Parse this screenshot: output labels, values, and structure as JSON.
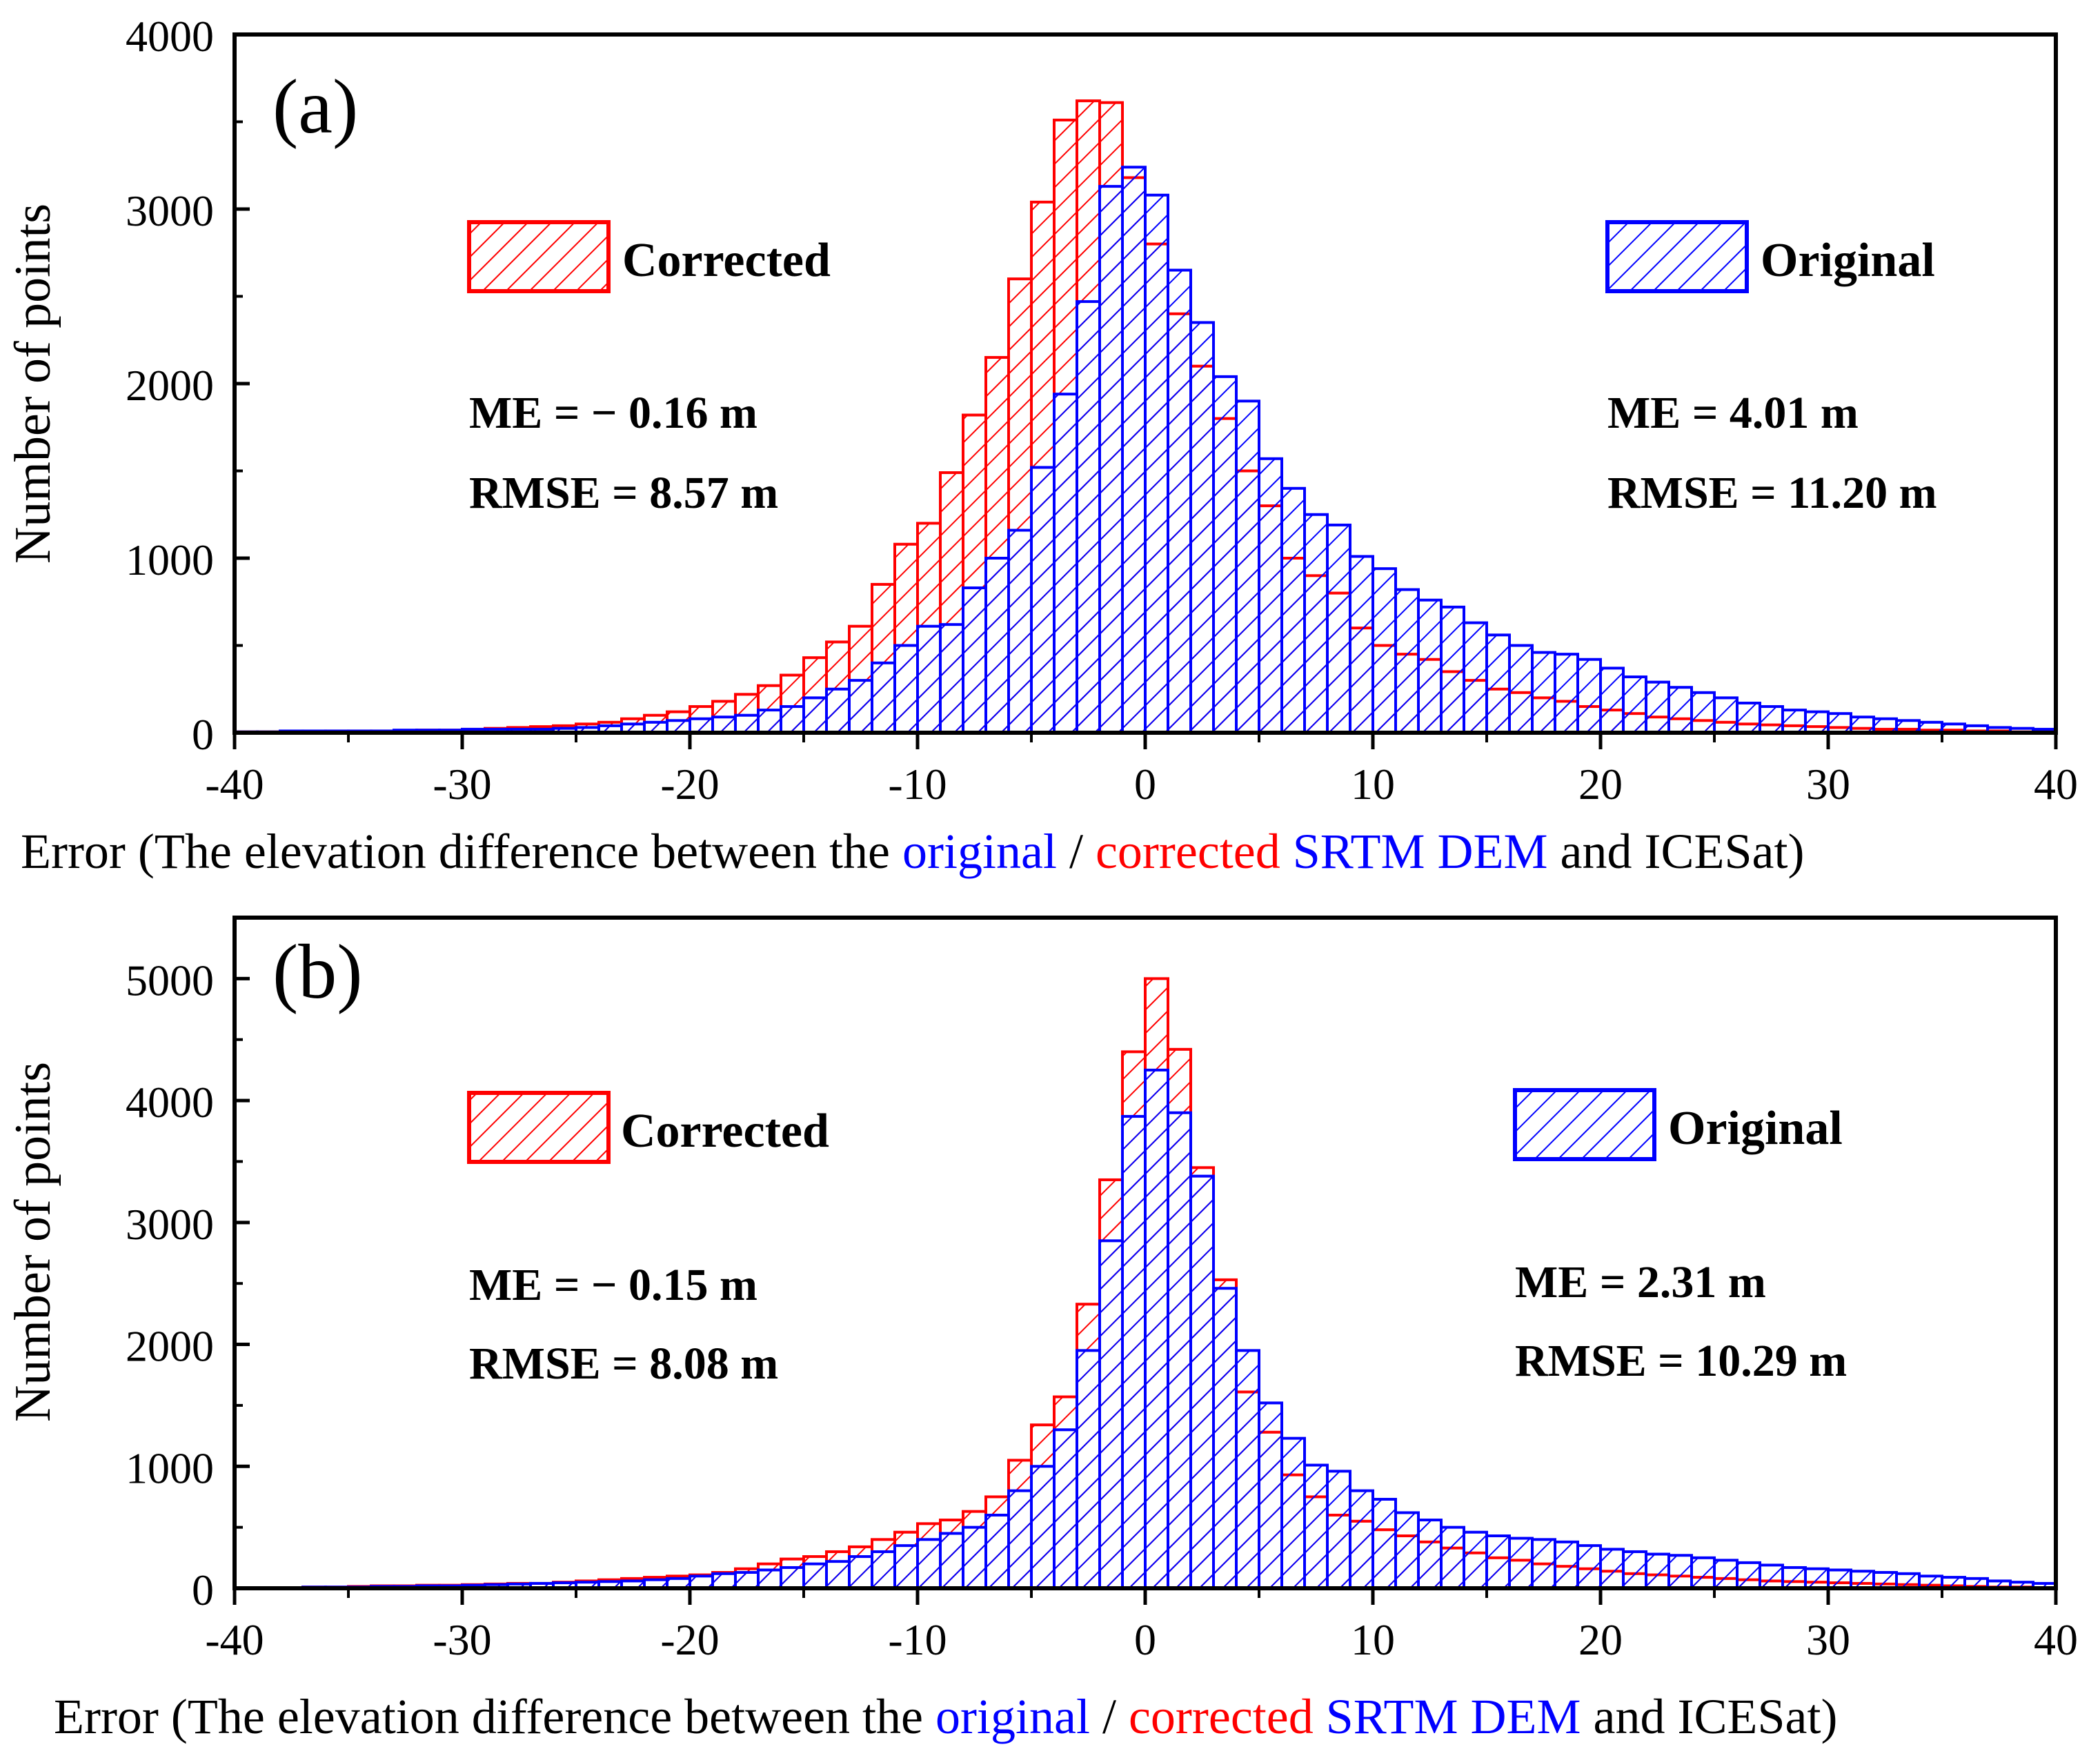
{
  "colors": {
    "corrected": "#ff0000",
    "original": "#0000ff",
    "axis": "#000000"
  },
  "xlabel_parts": [
    {
      "text": "Error (The elevation difference between the ",
      "color": "#000000"
    },
    {
      "text": "original",
      "color": "#0000ff"
    },
    {
      "text": " / ",
      "color": "#000000"
    },
    {
      "text": "corrected",
      "color": "#ff0000"
    },
    {
      "text": " SRTM DEM",
      "color": "#0000ff"
    },
    {
      "text": " and  ICESat)",
      "color": "#000000"
    }
  ],
  "chart_data": [
    {
      "type": "histogram",
      "panel_label": "(a)",
      "ylabel": "Number of points",
      "xlim": [
        -40,
        40
      ],
      "ylim": [
        0,
        4000
      ],
      "xticks": [
        -40,
        -30,
        -20,
        -10,
        0,
        10,
        20,
        30,
        40
      ],
      "yticks": [
        0,
        1000,
        2000,
        3000,
        4000
      ],
      "bin_start": -40,
      "bin_width": 1,
      "series": [
        {
          "name": "Corrected",
          "stats": [
            "ME = − 0.16 m",
            "RMSE = 8.57 m"
          ],
          "values": [
            5,
            5,
            5,
            5,
            10,
            10,
            10,
            10,
            15,
            15,
            20,
            25,
            30,
            35,
            40,
            50,
            60,
            80,
            100,
            120,
            150,
            180,
            220,
            270,
            330,
            430,
            520,
            610,
            850,
            1080,
            1200,
            1490,
            1820,
            2150,
            2600,
            3040,
            3510,
            3620,
            3610,
            3180,
            2800,
            2400,
            2100,
            1800,
            1500,
            1300,
            1000,
            900,
            800,
            600,
            500,
            450,
            420,
            350,
            300,
            250,
            230,
            200,
            180,
            150,
            130,
            110,
            90,
            80,
            70,
            60,
            50,
            45,
            40,
            35,
            30,
            25,
            20,
            20,
            15,
            15,
            10,
            10,
            5,
            5
          ]
        },
        {
          "name": "Original",
          "stats": [
            "ME = 4.01 m",
            "RMSE = 11.20 m"
          ],
          "values": [
            5,
            5,
            10,
            10,
            10,
            10,
            10,
            15,
            15,
            15,
            20,
            20,
            20,
            20,
            25,
            30,
            40,
            50,
            60,
            70,
            80,
            90,
            100,
            130,
            150,
            200,
            250,
            300,
            400,
            500,
            610,
            620,
            830,
            1000,
            1160,
            1520,
            1940,
            2470,
            3130,
            3240,
            3080,
            2650,
            2350,
            2040,
            1900,
            1570,
            1400,
            1250,
            1190,
            1010,
            940,
            820,
            760,
            720,
            630,
            560,
            500,
            460,
            450,
            420,
            370,
            320,
            290,
            260,
            230,
            200,
            170,
            150,
            130,
            120,
            110,
            90,
            80,
            70,
            60,
            50,
            40,
            30,
            25,
            20
          ]
        }
      ],
      "legend_labels": [
        "Corrected",
        "Original"
      ]
    },
    {
      "type": "histogram",
      "panel_label": "(b)",
      "ylabel": "Number of points",
      "xlim": [
        -40,
        40
      ],
      "ylim": [
        0,
        5500
      ],
      "xticks": [
        -40,
        -30,
        -20,
        -10,
        0,
        10,
        20,
        30,
        40
      ],
      "yticks": [
        0,
        1000,
        2000,
        3000,
        4000,
        5000
      ],
      "bin_start": -40,
      "bin_width": 1,
      "series": [
        {
          "name": "Corrected",
          "stats": [
            "ME = − 0.15 m",
            "RMSE = 8.08 m"
          ],
          "values": [
            5,
            5,
            5,
            10,
            10,
            15,
            20,
            20,
            25,
            25,
            30,
            35,
            40,
            40,
            50,
            60,
            70,
            80,
            90,
            100,
            110,
            130,
            160,
            200,
            240,
            260,
            300,
            340,
            400,
            460,
            530,
            560,
            630,
            750,
            1050,
            1340,
            1570,
            2330,
            3350,
            4400,
            5000,
            4420,
            3450,
            2530,
            1610,
            1280,
            930,
            750,
            600,
            550,
            480,
            430,
            380,
            330,
            290,
            250,
            230,
            200,
            180,
            160,
            140,
            120,
            110,
            100,
            90,
            80,
            70,
            60,
            55,
            50,
            45,
            40,
            35,
            30,
            25,
            20,
            15,
            10,
            10,
            5
          ]
        },
        {
          "name": "Original",
          "stats": [
            "ME = 2.31 m",
            "RMSE = 10.29 m"
          ],
          "values": [
            5,
            5,
            5,
            10,
            10,
            10,
            15,
            15,
            20,
            20,
            25,
            30,
            35,
            40,
            45,
            50,
            55,
            60,
            70,
            80,
            100,
            120,
            130,
            150,
            170,
            200,
            220,
            260,
            300,
            350,
            400,
            450,
            500,
            600,
            800,
            1000,
            1300,
            1950,
            2850,
            3870,
            4250,
            3900,
            3380,
            2460,
            1950,
            1520,
            1230,
            1010,
            960,
            800,
            730,
            620,
            560,
            500,
            460,
            430,
            410,
            400,
            380,
            350,
            320,
            300,
            280,
            270,
            250,
            230,
            210,
            190,
            170,
            160,
            150,
            140,
            130,
            120,
            100,
            90,
            80,
            60,
            50,
            40
          ]
        }
      ],
      "legend_labels": [
        "Corrected",
        "Original"
      ]
    }
  ]
}
